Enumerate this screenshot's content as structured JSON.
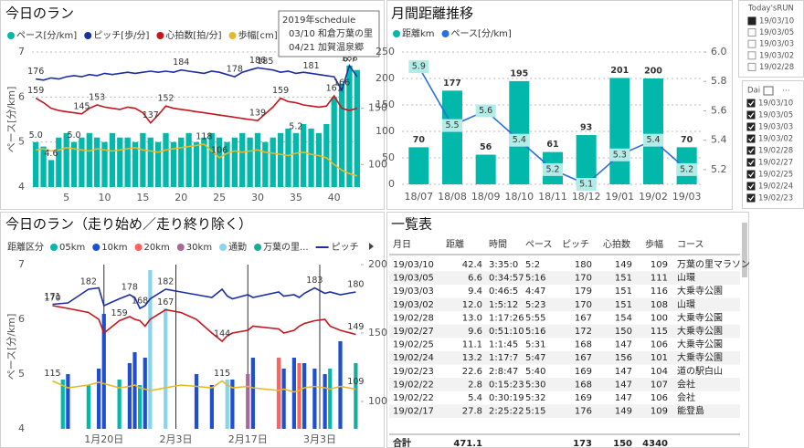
{
  "chart_data": [
    {
      "type": "combo",
      "title": "今日のラン",
      "ylabel": "ペース[分/km]",
      "annotation": [
        "2019年schedule",
        "03/10 和倉万葉の里",
        "04/21 加賀温泉郷"
      ],
      "x": [
        1,
        2,
        3,
        4,
        5,
        6,
        7,
        8,
        9,
        10,
        11,
        12,
        13,
        14,
        15,
        16,
        17,
        18,
        19,
        20,
        21,
        22,
        23,
        24,
        25,
        26,
        27,
        28,
        29,
        30,
        31,
        32,
        33,
        34,
        35,
        36,
        37,
        38,
        39,
        40,
        41,
        42,
        43
      ],
      "xlim": [
        0.5,
        43.5
      ],
      "xticks": [
        5,
        10,
        15,
        20,
        25,
        30,
        35,
        40
      ],
      "ylim": [
        4,
        7
      ],
      "yticks": [
        4,
        5,
        6,
        7
      ],
      "y2lim": [
        80,
        200
      ],
      "y2ticks": [
        100,
        150
      ],
      "grid": true,
      "series": [
        {
          "name": "ペース[分/km]",
          "kind": "bar",
          "color": "#01b8aa",
          "values": [
            5.0,
            4.9,
            4.6,
            5.1,
            5.2,
            5.0,
            5.1,
            5.2,
            5.1,
            5.0,
            5.2,
            5.1,
            5.1,
            5.0,
            5.2,
            5.1,
            5.0,
            5.2,
            5.0,
            5.1,
            5.2,
            5.0,
            5.1,
            5.2,
            5.1,
            5.0,
            5.1,
            5.2,
            5.1,
            5.2,
            5.0,
            5.1,
            5.2,
            5.3,
            5.2,
            5.4,
            5.3,
            5.2,
            5.4,
            6.0,
            6.3,
            6.7,
            6.6
          ],
          "value_labels": [
            "5.0",
            null,
            "4.6",
            null,
            null,
            "5.0",
            null,
            null,
            null,
            null,
            null,
            null,
            null,
            null,
            null,
            null,
            null,
            null,
            null,
            null,
            null,
            null,
            null,
            null,
            null,
            null,
            null,
            null,
            null,
            null,
            null,
            null,
            null,
            null,
            "5.2",
            null,
            null,
            null,
            null,
            null,
            null,
            "6.7",
            null
          ]
        },
        {
          "name": "ピッチ[歩/分]",
          "kind": "line",
          "axis": "y2",
          "color": "#1b2fa0",
          "values": [
            176,
            175,
            177,
            176,
            178,
            179,
            178,
            180,
            179,
            181,
            180,
            181,
            182,
            181,
            182,
            183,
            182,
            183,
            182,
            184,
            183,
            182,
            181,
            183,
            182,
            180,
            178,
            182,
            184,
            186,
            185,
            184,
            182,
            183,
            181,
            182,
            181,
            180,
            179,
            178,
            166,
            188,
            178
          ],
          "value_labels": [
            "176",
            null,
            null,
            null,
            null,
            null,
            null,
            null,
            null,
            null,
            null,
            null,
            null,
            null,
            null,
            null,
            null,
            null,
            null,
            "184",
            null,
            null,
            null,
            null,
            null,
            null,
            "178",
            null,
            null,
            "186",
            "185",
            null,
            null,
            null,
            null,
            null,
            "181",
            null,
            null,
            null,
            "166",
            "188",
            null
          ]
        },
        {
          "name": "心拍数[拍/分]",
          "kind": "line",
          "axis": "y2",
          "color": "#c4161c",
          "values": [
            159,
            155,
            150,
            148,
            147,
            146,
            145,
            150,
            153,
            151,
            150,
            149,
            151,
            150,
            146,
            137,
            144,
            152,
            150,
            149,
            148,
            147,
            146,
            145,
            144,
            143,
            142,
            141,
            140,
            139,
            145,
            151,
            159,
            156,
            155,
            153,
            152,
            151,
            152,
            161,
            150,
            148,
            150
          ],
          "value_labels": [
            "159",
            null,
            null,
            null,
            null,
            null,
            "145",
            null,
            "153",
            null,
            null,
            null,
            null,
            null,
            null,
            "137",
            null,
            "152",
            null,
            null,
            null,
            null,
            null,
            null,
            null,
            null,
            null,
            null,
            null,
            "139",
            null,
            null,
            "159",
            null,
            null,
            null,
            null,
            null,
            null,
            "161",
            null,
            null,
            null
          ]
        },
        {
          "name": "歩幅[cm]",
          "kind": "line",
          "axis": "y2",
          "color": "#e8b82a",
          "values": [
            113,
            114,
            112,
            113,
            115,
            114,
            113,
            112,
            114,
            113,
            112,
            113,
            114,
            115,
            113,
            112,
            111,
            113,
            114,
            115,
            116,
            117,
            118,
            112,
            106,
            110,
            112,
            111,
            112,
            113,
            111,
            110,
            109,
            108,
            110,
            111,
            109,
            108,
            106,
            100,
            95,
            92,
            90
          ],
          "value_labels": [
            null,
            null,
            null,
            null,
            null,
            null,
            null,
            null,
            null,
            null,
            null,
            null,
            null,
            null,
            null,
            null,
            null,
            null,
            null,
            null,
            null,
            null,
            "118",
            null,
            "106",
            null,
            null,
            null,
            null,
            null,
            null,
            null,
            null,
            null,
            null,
            null,
            null,
            null,
            null,
            null,
            null,
            null,
            null
          ]
        }
      ]
    },
    {
      "type": "combo",
      "title": "月間距離推移",
      "data_labels": true,
      "categories": [
        "18/07",
        "18/08",
        "18/09",
        "18/10",
        "18/11",
        "18/12",
        "19/01",
        "19/02",
        "19/03"
      ],
      "ylim": [
        0,
        250
      ],
      "yticks": [
        0,
        50,
        100,
        150,
        200,
        250
      ],
      "y2lim": [
        5.1,
        6.0
      ],
      "y2ticks": [
        5.2,
        5.4,
        5.6,
        5.8,
        {
          "value": 6,
          "label": "6.0"
        }
      ],
      "grid": true,
      "series": [
        {
          "name": "距離km",
          "kind": "bar",
          "color": "#01b8aa",
          "values": [
            70,
            177,
            56,
            195,
            61,
            93,
            201,
            200,
            70
          ]
        },
        {
          "name": "ペース[分/km]",
          "kind": "line",
          "axis": "y2",
          "color": "#2a6fdb",
          "label_box": true,
          "values": [
            5.9,
            5.5,
            5.6,
            5.4,
            5.2,
            5.1,
            5.3,
            5.4,
            5.2
          ]
        }
      ]
    },
    {
      "type": "combo",
      "title": "今日のラン（走り始め／走り終り除く）",
      "ylabel": "ペース[分/km]",
      "legend_title": "距離区分",
      "xlim": [
        6,
        70
      ],
      "xticks": [
        {
          "value": 20,
          "label": "1月20日"
        },
        {
          "value": 34,
          "label": "2月3日"
        },
        {
          "value": 48,
          "label": "2月17日"
        },
        {
          "value": 62,
          "label": "3月3日"
        }
      ],
      "xgrid": true,
      "ylim": [
        4,
        7
      ],
      "yticks": [
        4,
        5,
        6,
        7
      ],
      "y2lim": [
        80,
        200
      ],
      "y2ticks": [
        100,
        150,
        200
      ],
      "series": [
        {
          "name": "05km",
          "kind": "bar",
          "color": "#01b8aa",
          "x": [
            12,
            17,
            23,
            27,
            64
          ],
          "values": [
            4.9,
            4.8,
            4.9,
            4.8,
            5.1
          ]
        },
        {
          "name": "10km",
          "kind": "bar",
          "color": "#1f4fd0",
          "x": [
            13,
            19,
            20,
            25,
            26,
            28,
            38,
            41,
            45,
            49,
            55,
            57,
            59,
            61,
            63,
            66
          ],
          "values": [
            5.0,
            5.1,
            6.1,
            5.2,
            5.4,
            5.3,
            5.0,
            4.8,
            4.9,
            5.3,
            5.1,
            5.3,
            5.2,
            5.1,
            5.0,
            5.6
          ]
        },
        {
          "name": "20km",
          "kind": "bar",
          "color": "#fd625e",
          "x": [
            54,
            58
          ],
          "values": [
            5.3,
            5.2
          ]
        },
        {
          "name": "30km",
          "kind": "bar",
          "color": "#a66999",
          "x": [
            48
          ],
          "values": [
            5.0
          ]
        },
        {
          "name": "通勤",
          "kind": "bar",
          "color": "#8ad4eb",
          "x": [
            29,
            32,
            44
          ],
          "values": [
            6.9,
            6.2,
            4.9
          ]
        },
        {
          "name": "万葉の里...",
          "kind": "bar",
          "color": "#1aab9b",
          "x": [
            69
          ],
          "values": [
            5.2
          ]
        },
        {
          "name": "ピッチ",
          "kind": "line",
          "axis": "y2",
          "color": "#1b2fa0",
          "x": [
            10,
            13,
            17,
            19,
            20,
            23,
            25,
            26,
            27,
            28,
            29,
            32,
            35,
            38,
            41,
            43,
            44,
            45,
            48,
            49,
            54,
            55,
            57,
            58,
            59,
            61,
            63,
            64,
            66,
            69
          ],
          "values": [
            171,
            172,
            182,
            183,
            170,
            175,
            178,
            176,
            168,
            170,
            175,
            182,
            180,
            178,
            176,
            182,
            177,
            175,
            178,
            176,
            180,
            177,
            178,
            176,
            179,
            183,
            179,
            180,
            178,
            180
          ],
          "value_labels": [
            "171",
            null,
            "182",
            null,
            null,
            null,
            "178",
            null,
            "168",
            null,
            null,
            "182",
            null,
            null,
            null,
            null,
            null,
            null,
            null,
            null,
            null,
            null,
            null,
            null,
            null,
            "183",
            null,
            null,
            null,
            "180"
          ]
        },
        {
          "kind": "line",
          "axis": "y2",
          "color": "#c4161c",
          "x": [
            10,
            13,
            17,
            19,
            20,
            23,
            25,
            26,
            27,
            28,
            29,
            32,
            35,
            38,
            41,
            43,
            44,
            45,
            48,
            49,
            54,
            55,
            57,
            58,
            59,
            61,
            63,
            64,
            66,
            69
          ],
          "values": [
            170,
            168,
            165,
            160,
            150,
            159,
            162,
            160,
            159,
            155,
            160,
            167,
            165,
            160,
            150,
            144,
            148,
            150,
            152,
            155,
            153,
            150,
            152,
            155,
            157,
            159,
            160,
            155,
            152,
            149
          ],
          "value_labels": [
            "170",
            null,
            null,
            null,
            null,
            "159",
            null,
            null,
            null,
            null,
            null,
            "167",
            null,
            null,
            null,
            "144",
            null,
            null,
            null,
            null,
            null,
            null,
            null,
            null,
            null,
            null,
            null,
            null,
            null,
            "149"
          ]
        },
        {
          "kind": "line",
          "axis": "y2",
          "color": "#e8b82a",
          "x": [
            10,
            13,
            17,
            19,
            20,
            23,
            25,
            26,
            27,
            28,
            29,
            32,
            35,
            38,
            41,
            43,
            44,
            45,
            48,
            49,
            54,
            55,
            57,
            58,
            59,
            61,
            63,
            64,
            66,
            69
          ],
          "values": [
            115,
            110,
            112,
            114,
            113,
            110,
            111,
            112,
            110,
            109,
            108,
            110,
            112,
            111,
            110,
            115,
            112,
            110,
            111,
            110,
            108,
            109,
            107,
            108,
            110,
            111,
            110,
            109,
            111,
            109
          ],
          "value_labels": [
            "115",
            null,
            null,
            null,
            null,
            null,
            null,
            null,
            null,
            null,
            null,
            null,
            null,
            null,
            null,
            "115",
            null,
            null,
            null,
            null,
            null,
            null,
            null,
            null,
            null,
            null,
            null,
            null,
            null,
            "109"
          ]
        }
      ]
    }
  ],
  "table": {
    "title": "一覧表",
    "columns": [
      "月日",
      "距離",
      "時間",
      "ペース",
      "ピッチ",
      "心拍数",
      "歩幅",
      "コース"
    ],
    "rows": [
      [
        "19/03/10",
        "42.4",
        "3:35:0",
        "5:2",
        "180",
        "149",
        "109",
        "万葉の里マラソン"
      ],
      [
        "19/03/05",
        "6.6",
        "0:34:57",
        "5:16",
        "170",
        "151",
        "111",
        "山環"
      ],
      [
        "19/03/03",
        "9.4",
        "0:46:5",
        "4:47",
        "179",
        "151",
        "116",
        "大乗寺公園"
      ],
      [
        "19/03/02",
        "12.0",
        "1:5:12",
        "5:23",
        "170",
        "151",
        "108",
        "山環"
      ],
      [
        "19/02/28",
        "13.0",
        "1:17:26",
        "5:55",
        "167",
        "154",
        "100",
        "大乗寺公園"
      ],
      [
        "19/02/27",
        "9.6",
        "0:51:10",
        "5:16",
        "172",
        "150",
        "115",
        "大乗寺公園"
      ],
      [
        "19/02/25",
        "11.1",
        "1:1:45",
        "5:31",
        "168",
        "147",
        "106",
        "大乗寺公園"
      ],
      [
        "19/02/24",
        "13.2",
        "1:17:7",
        "5:47",
        "167",
        "156",
        "101",
        "大乗寺公園"
      ],
      [
        "19/02/23",
        "22.6",
        "2:8:47",
        "5:40",
        "169",
        "147",
        "104",
        "道の駅白山"
      ],
      [
        "19/02/22",
        "2.8",
        "0:15:23",
        "5:30",
        "168",
        "147",
        "107",
        "会社"
      ],
      [
        "19/02/22",
        "5.4",
        "0:30:19",
        "5:32",
        "169",
        "147",
        "106",
        "会社"
      ],
      [
        "19/02/17",
        "27.8",
        "2:25:22",
        "5:15",
        "176",
        "149",
        "109",
        "能登島"
      ]
    ],
    "total": [
      "合計",
      "471.1",
      null,
      null,
      "173",
      "150",
      "4340",
      null
    ]
  },
  "slicers": [
    {
      "title": "Today'sRUN",
      "items": [
        "19/03/10",
        "19/03/05",
        "19/03/03",
        "19/03/02",
        "19/02/28"
      ],
      "checked": [
        true,
        false,
        false,
        false,
        false
      ]
    },
    {
      "title": "Dai",
      "items": [
        "19/03/10",
        "19/03/05",
        "19/03/03",
        "19/03/02",
        "19/02/28",
        "19/02/27",
        "19/02/25",
        "19/02/24",
        "19/02/23"
      ],
      "checked": [
        true,
        true,
        true,
        true,
        true,
        true,
        true,
        true,
        true
      ]
    }
  ]
}
